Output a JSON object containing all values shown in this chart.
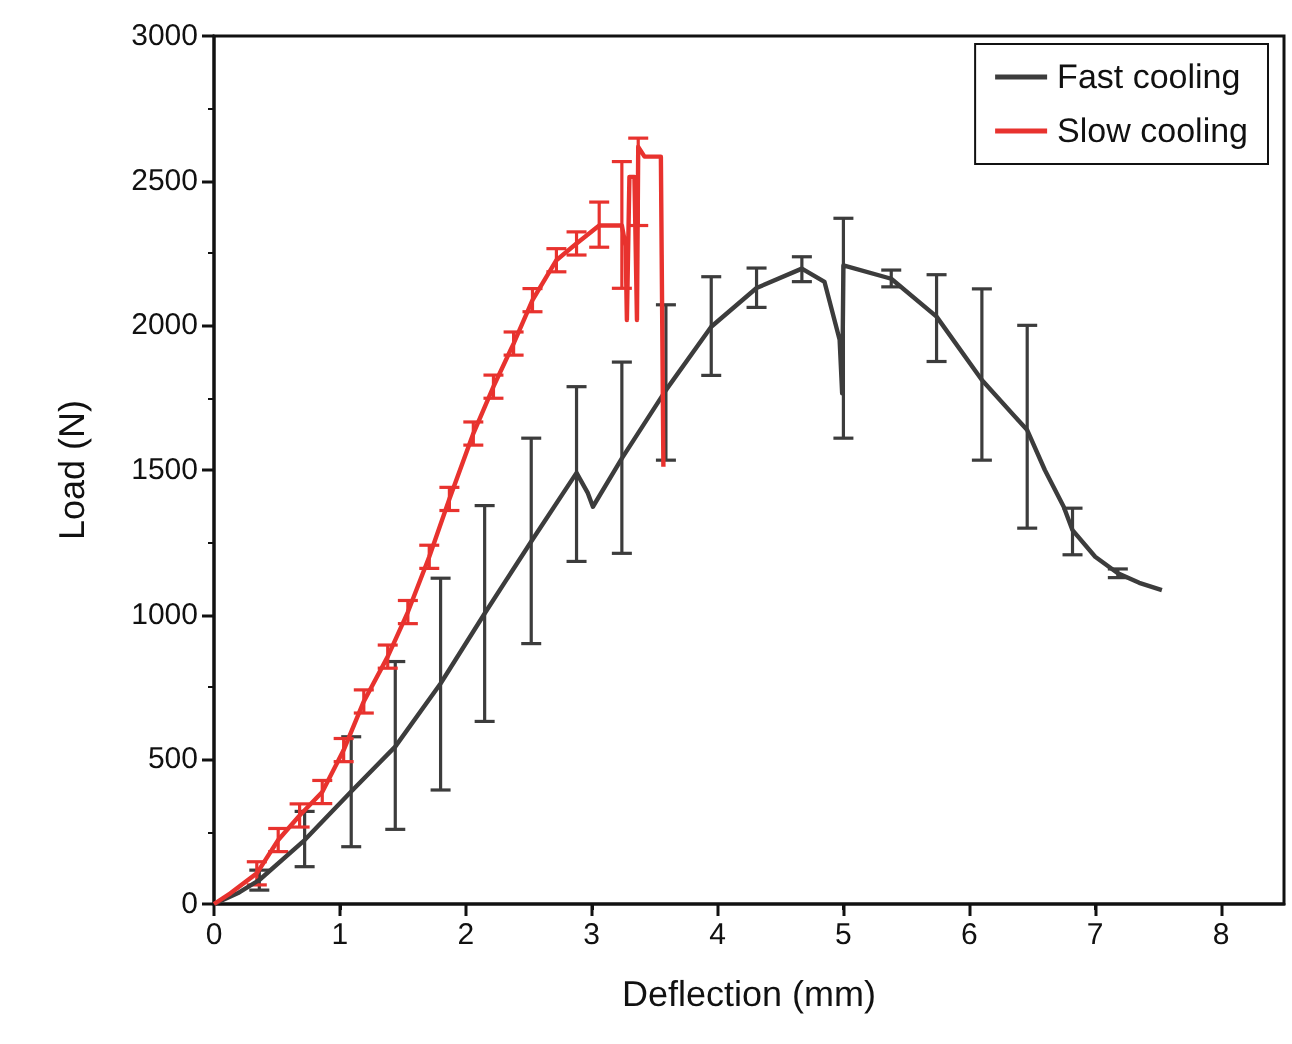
{
  "chart_data": {
    "type": "line",
    "xlabel": "Deflection (mm)",
    "ylabel": "Load (N)",
    "xlim": [
      0,
      8.5
    ],
    "xticks": [
      0,
      1,
      2,
      3,
      4,
      5,
      6,
      7,
      8
    ],
    "ylim": [
      0,
      3000
    ],
    "yticks": [
      0,
      500,
      1000,
      1500,
      2000,
      2500,
      3000
    ],
    "legend": "top right",
    "series": [
      {
        "name": "Fast cooling",
        "color": "#3c3c3c",
        "x": [
          0,
          0.2,
          0.36,
          0.72,
          1.09,
          1.44,
          1.8,
          2.15,
          2.52,
          2.88,
          2.97,
          3.01,
          3.24,
          3.59,
          3.95,
          4.31,
          4.67,
          4.85,
          4.97,
          4.99,
          5.0,
          5.38,
          5.74,
          6.1,
          6.46,
          6.6,
          6.75,
          6.82,
          7.0,
          7.18,
          7.35,
          7.53
        ],
        "values": [
          0,
          40,
          83,
          221,
          389,
          544,
          762,
          1004,
          1253,
          1490,
          1420,
          1373,
          1540,
          1776,
          1995,
          2129,
          2196,
          2150,
          1950,
          1765,
          2207,
          2161,
          2030,
          1811,
          1638,
          1500,
          1373,
          1292,
          1200,
          1143,
          1110,
          1085
        ],
        "errors": [
          null,
          null,
          [
            48,
            117
          ],
          [
            129,
            320
          ],
          [
            198,
            578
          ],
          [
            258,
            838
          ],
          [
            394,
            1126
          ],
          [
            631,
            1377
          ],
          [
            900,
            1610
          ],
          [
            1184,
            1788
          ],
          null,
          null,
          [
            1212,
            1873
          ],
          [
            1534,
            2071
          ],
          [
            1827,
            2168
          ],
          [
            2062,
            2198
          ],
          [
            2151,
            2237
          ],
          null,
          null,
          null,
          [
            1610,
            2370
          ],
          [
            2133,
            2191
          ],
          [
            1875,
            2175
          ],
          [
            1534,
            2126
          ],
          [
            1299,
            2000
          ],
          null,
          null,
          [
            1207,
            1368
          ],
          null,
          [
            1128,
            1158
          ],
          null,
          null
        ]
      },
      {
        "name": "Slow cooling",
        "color": "#e8322e",
        "x": [
          0,
          0.13,
          0.34,
          0.51,
          0.68,
          0.86,
          1.03,
          1.19,
          1.38,
          1.54,
          1.71,
          1.87,
          2.06,
          2.22,
          2.38,
          2.53,
          2.72,
          2.88,
          3.06,
          3.24,
          3.27,
          3.28,
          3.3,
          3.34,
          3.36,
          3.37,
          3.42,
          3.55,
          3.57
        ],
        "values": [
          0,
          37,
          106,
          221,
          306,
          387,
          532,
          700,
          855,
          1009,
          1200,
          1400,
          1626,
          1788,
          1937,
          2087,
          2225,
          2283,
          2345,
          2345,
          2274,
          2018,
          2513,
          2513,
          2018,
          2617,
          2583,
          2583,
          1511
        ],
        "errors": [
          null,
          null,
          40,
          40,
          40,
          40,
          40,
          40,
          40,
          40,
          40,
          40,
          40,
          40,
          40,
          40,
          40,
          40,
          [
            2270,
            2426
          ],
          [
            2128,
            2566
          ],
          null,
          null,
          null,
          null,
          null,
          [
            2345,
            2647
          ],
          null,
          null,
          null
        ]
      }
    ]
  }
}
